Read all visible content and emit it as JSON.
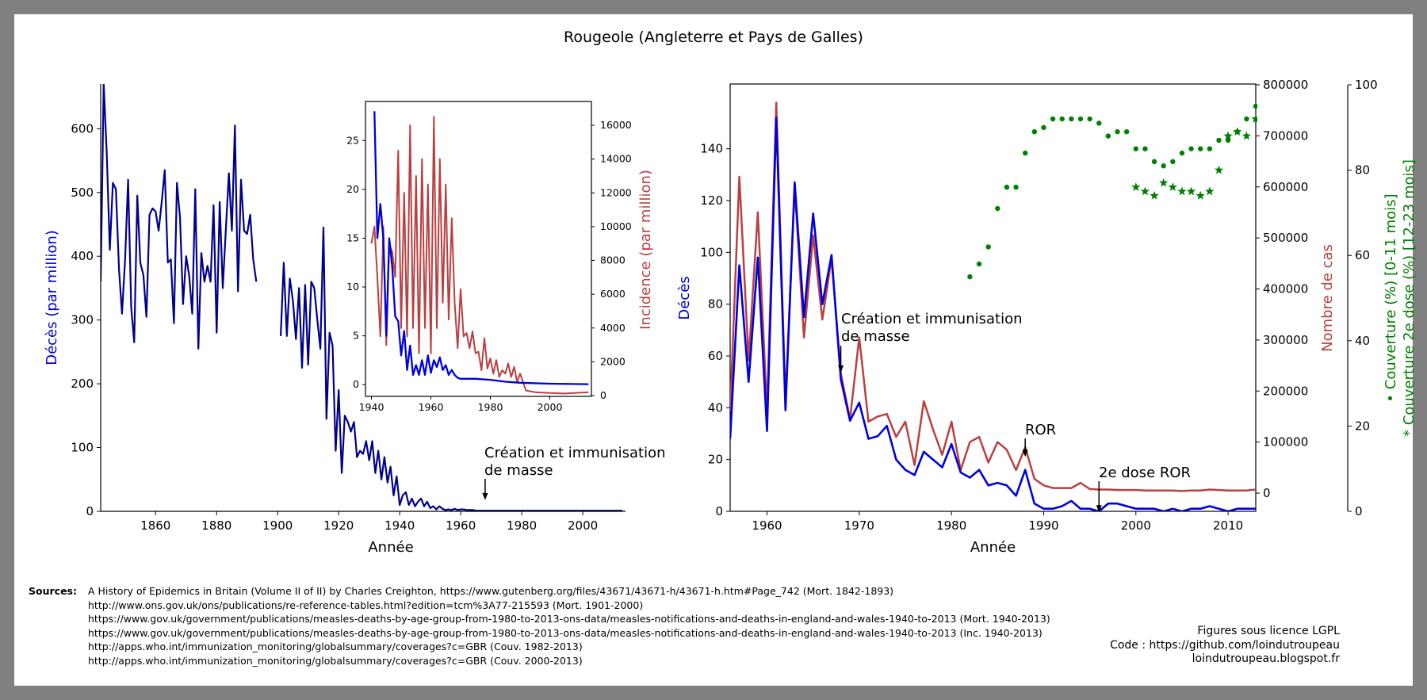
{
  "title": "Rougeole (Angleterre et Pays de Galles)",
  "colors": {
    "blue": "#0000dd",
    "navy": "#00008b",
    "red": "#b94040",
    "green": "#008000"
  },
  "chart_data": [
    {
      "type": "line",
      "id": "left-main",
      "xlabel": "Année",
      "ylabel": "Décès (par million)",
      "xlim": [
        1842,
        2014
      ],
      "ylim": [
        0,
        670
      ],
      "xticks": [
        "1860",
        "1880",
        "1900",
        "1920",
        "1940",
        "1960",
        "1980",
        "2000"
      ],
      "yticks": [
        "0",
        "100",
        "200",
        "300",
        "400",
        "500",
        "600"
      ],
      "annotation": {
        "text": [
          "Création et immunisation",
          "de masse"
        ],
        "x": 1968,
        "y": 15
      },
      "series": [
        {
          "segment": "1842-1893",
          "x": [
            1842,
            1843,
            1844,
            1845,
            1846,
            1847,
            1848,
            1849,
            1850,
            1851,
            1852,
            1853,
            1854,
            1855,
            1856,
            1857,
            1858,
            1859,
            1860,
            1861,
            1862,
            1863,
            1864,
            1865,
            1866,
            1867,
            1868,
            1869,
            1870,
            1871,
            1872,
            1873,
            1874,
            1875,
            1876,
            1877,
            1878,
            1879,
            1880,
            1881,
            1882,
            1883,
            1884,
            1885,
            1886,
            1887,
            1888,
            1889,
            1890,
            1891,
            1892,
            1893
          ],
          "y": [
            360,
            670,
            560,
            410,
            515,
            505,
            380,
            310,
            395,
            520,
            320,
            265,
            495,
            390,
            370,
            305,
            465,
            475,
            470,
            440,
            485,
            535,
            390,
            395,
            295,
            515,
            460,
            325,
            400,
            370,
            310,
            505,
            255,
            405,
            360,
            385,
            360,
            480,
            280,
            485,
            350,
            440,
            530,
            440,
            605,
            345,
            520,
            440,
            435,
            465,
            395,
            360
          ]
        },
        {
          "segment": "1901-1913",
          "x": [
            1901,
            1902,
            1903,
            1904,
            1905,
            1906,
            1907,
            1908,
            1909,
            1910,
            1911,
            1912,
            1913
          ],
          "y": [
            275,
            390,
            275,
            365,
            330,
            270,
            350,
            225,
            355,
            230,
            360,
            350,
            300
          ]
        },
        {
          "segment": "1913-2013",
          "x": [
            1913,
            1914,
            1915,
            1916,
            1917,
            1918,
            1919,
            1920,
            1921,
            1922,
            1923,
            1924,
            1925,
            1926,
            1927,
            1928,
            1929,
            1930,
            1931,
            1932,
            1933,
            1934,
            1935,
            1936,
            1937,
            1938,
            1939,
            1940,
            1941,
            1942,
            1943,
            1944,
            1945,
            1946,
            1947,
            1948,
            1949,
            1950,
            1951,
            1952,
            1953,
            1954,
            1955,
            1956,
            1957,
            1958,
            1959,
            1960,
            1961,
            1962,
            1963,
            1964,
            1965,
            1966,
            1967,
            1968,
            1969,
            1970,
            1980,
            1990,
            2000,
            2013
          ],
          "y": [
            300,
            255,
            445,
            145,
            280,
            260,
            95,
            190,
            60,
            150,
            140,
            125,
            140,
            85,
            95,
            90,
            110,
            80,
            110,
            60,
            95,
            50,
            85,
            45,
            70,
            25,
            55,
            10,
            25,
            30,
            10,
            20,
            8,
            15,
            20,
            8,
            15,
            5,
            8,
            3,
            8,
            4,
            2,
            3,
            2,
            4,
            2,
            3,
            3,
            2,
            2,
            2,
            1,
            1,
            1,
            1,
            1,
            1,
            1,
            1,
            1,
            1
          ]
        }
      ]
    },
    {
      "type": "line",
      "id": "left-inset",
      "xlim": [
        1938,
        2014
      ],
      "y_left_lim": [
        -1.2,
        29
      ],
      "y_right_lim": [
        0,
        17000
      ],
      "ylabel_right": "Incidence (par million)",
      "xticks": [
        "1940",
        "1960",
        "1980",
        "2000"
      ],
      "yticks_left": [
        "0",
        "5",
        "10",
        "15",
        "20",
        "25"
      ],
      "yticks_right": [
        "0",
        "2000",
        "4000",
        "6000",
        "8000",
        "10000",
        "12000",
        "14000",
        "16000"
      ],
      "series": [
        {
          "axis": "left",
          "x": [
            1941,
            1942,
            1943,
            1944,
            1945,
            1946,
            1947,
            1948,
            1949,
            1950,
            1951,
            1952,
            1953,
            1954,
            1955,
            1956,
            1957,
            1958,
            1959,
            1960,
            1961,
            1962,
            1963,
            1964,
            1965,
            1966,
            1967,
            1968,
            1969,
            1970,
            1975,
            1980,
            1985,
            1990,
            2000,
            2013
          ],
          "y": [
            28,
            15,
            18.5,
            15,
            5,
            15,
            12,
            7,
            6.5,
            3,
            5.5,
            1.5,
            4,
            1,
            2,
            1,
            2.5,
            1,
            3,
            1.2,
            2.5,
            1.8,
            2.8,
            1.5,
            2,
            1,
            1.5,
            1,
            0.7,
            0.6,
            0.6,
            0.5,
            0.3,
            0.2,
            0.1,
            0.05
          ]
        },
        {
          "axis": "right",
          "x": [
            1940,
            1941,
            1942,
            1943,
            1944,
            1945,
            1946,
            1947,
            1948,
            1949,
            1950,
            1951,
            1952,
            1953,
            1954,
            1955,
            1956,
            1957,
            1958,
            1959,
            1960,
            1961,
            1962,
            1963,
            1964,
            1965,
            1966,
            1967,
            1968,
            1969,
            1970,
            1971,
            1972,
            1973,
            1974,
            1975,
            1976,
            1977,
            1978,
            1979,
            1980,
            1981,
            1982,
            1983,
            1984,
            1985,
            1986,
            1987,
            1988,
            1989,
            1990,
            1992,
            1995,
            2000,
            2005,
            2013
          ],
          "y": [
            9000,
            10000,
            7000,
            3500,
            10000,
            3000,
            9000,
            8500,
            7000,
            14500,
            4000,
            12000,
            3500,
            16000,
            4000,
            13000,
            2500,
            14000,
            4000,
            12500,
            2500,
            16500,
            4000,
            14000,
            5500,
            12500,
            4500,
            10500,
            5500,
            2800,
            6300,
            3500,
            3700,
            2800,
            3800,
            2500,
            2600,
            1500,
            3400,
            1600,
            2200,
            1300,
            2100,
            1100,
            1500,
            1300,
            1900,
            1100,
            1700,
            800,
            1300,
            300,
            200,
            150,
            120,
            200
          ]
        }
      ]
    },
    {
      "type": "line",
      "id": "right",
      "xlabel": "Année",
      "ylabel_left": "Décès",
      "ylabel_right1": "Nombre de cas",
      "ylabel_right2_lines": [
        "• Couverture (%) [0-11 mois]",
        "* Couverture 2e dose (%) [12-23 mois]"
      ],
      "xlim": [
        1956,
        2013
      ],
      "y_left_lim": [
        0,
        165
      ],
      "y_right1_lim": [
        -35000,
        800000
      ],
      "y_right2_lim": [
        0,
        100
      ],
      "xticks": [
        "1960",
        "1970",
        "1980",
        "1990",
        "2000",
        "2010"
      ],
      "yticks_left": [
        "0",
        "20",
        "40",
        "60",
        "80",
        "100",
        "120",
        "140"
      ],
      "yticks_right1": [
        "0",
        "100000",
        "200000",
        "300000",
        "400000",
        "500000",
        "600000",
        "700000",
        "800000"
      ],
      "yticks_right2": [
        "0",
        "20",
        "40",
        "60",
        "80",
        "100"
      ],
      "annotations": [
        {
          "text": [
            "Création et immunisation",
            "de masse"
          ],
          "x": 1968,
          "y": 53
        },
        {
          "text": [
            "ROR"
          ],
          "x": 1988,
          "y": 21
        },
        {
          "text": [
            "2e dose ROR"
          ],
          "x": 1996,
          "y": 3
        }
      ],
      "series": [
        {
          "name_hidden": "deaths",
          "axis": "left",
          "x": [
            1956,
            1957,
            1958,
            1959,
            1960,
            1961,
            1962,
            1963,
            1964,
            1965,
            1966,
            1967,
            1968,
            1969,
            1970,
            1971,
            1972,
            1973,
            1974,
            1975,
            1976,
            1977,
            1978,
            1979,
            1980,
            1981,
            1982,
            1983,
            1984,
            1985,
            1986,
            1987,
            1988,
            1989,
            1990,
            1991,
            1992,
            1993,
            1994,
            1995,
            1996,
            1997,
            1998,
            1999,
            2000,
            2001,
            2002,
            2003,
            2004,
            2005,
            2006,
            2007,
            2008,
            2009,
            2010,
            2011,
            2012,
            2013
          ],
          "y": [
            28,
            95,
            50,
            98,
            31,
            152,
            39,
            127,
            75,
            115,
            80,
            99,
            51,
            35,
            42,
            28,
            29,
            33,
            20,
            16,
            14,
            23,
            20,
            17,
            26,
            15,
            13,
            16,
            10,
            11,
            10,
            6,
            16,
            3,
            1,
            1,
            2,
            4,
            1,
            1,
            0,
            3,
            3,
            2,
            1,
            1,
            1,
            0,
            1,
            0,
            1,
            1,
            2,
            1,
            0,
            1,
            1,
            1
          ]
        },
        {
          "name_hidden": "cases",
          "axis": "right1",
          "x": [
            1956,
            1957,
            1958,
            1959,
            1960,
            1961,
            1962,
            1963,
            1964,
            1965,
            1966,
            1967,
            1968,
            1969,
            1970,
            1971,
            1972,
            1973,
            1974,
            1975,
            1976,
            1977,
            1978,
            1979,
            1980,
            1981,
            1982,
            1983,
            1984,
            1985,
            1986,
            1987,
            1988,
            1989,
            1990,
            1991,
            1992,
            1993,
            1994,
            1995,
            1996,
            1997,
            1998,
            1999,
            2000,
            2001,
            2002,
            2003,
            2004,
            2005,
            2006,
            2007,
            2008,
            2009,
            2010,
            2011,
            2012,
            2013
          ],
          "y": [
            160000,
            620000,
            260000,
            550000,
            160000,
            765000,
            180000,
            600000,
            305000,
            505000,
            340000,
            460000,
            235000,
            145000,
            305000,
            140000,
            150000,
            155000,
            110000,
            140000,
            55000,
            180000,
            125000,
            75000,
            140000,
            45000,
            100000,
            110000,
            60000,
            100000,
            85000,
            45000,
            90000,
            28000,
            15000,
            10000,
            10000,
            10000,
            20000,
            8000,
            7000,
            7000,
            6000,
            6000,
            6000,
            5000,
            5000,
            5000,
            5000,
            4000,
            5000,
            5000,
            7000,
            6000,
            5000,
            5000,
            5000,
            7000
          ]
        },
        {
          "name_hidden": "coverage-0-11",
          "axis": "right2",
          "marker": "dot",
          "x": [
            1982,
            1983,
            1984,
            1985,
            1986,
            1987,
            1988,
            1989,
            1990,
            1991,
            1992,
            1993,
            1994,
            1995,
            1996,
            1997,
            1998,
            1999,
            2000,
            2001,
            2002,
            2003,
            2004,
            2005,
            2006,
            2007,
            2008,
            2009,
            2010,
            2011,
            2012,
            2013
          ],
          "y": [
            55,
            58,
            62,
            71,
            76,
            76,
            84,
            89,
            90,
            92,
            92,
            92,
            92,
            92,
            91,
            88,
            89,
            89,
            85,
            85,
            82,
            81,
            82,
            84,
            85,
            85,
            85,
            87,
            87,
            89,
            92,
            95
          ]
        },
        {
          "name_hidden": "coverage-2nd-dose",
          "axis": "right2",
          "marker": "star",
          "x": [
            2000,
            2001,
            2002,
            2003,
            2004,
            2005,
            2006,
            2007,
            2008,
            2009,
            2010,
            2011,
            2012,
            2013
          ],
          "y": [
            76,
            75,
            74,
            77,
            76,
            75,
            75,
            74,
            75,
            80,
            88,
            89,
            88,
            92
          ]
        }
      ]
    }
  ],
  "sources": {
    "label": "Sources:",
    "lines": [
      "A History of Epidemics in Britain (Volume II of II) by Charles Creighton, https://www.gutenberg.org/files/43671/43671-h/43671-h.htm#Page_742 (Mort. 1842-1893)",
      "http://www.ons.gov.uk/ons/publications/re-reference-tables.html?edition=tcm%3A77-215593 (Mort. 1901-2000)",
      "https://www.gov.uk/government/publications/measles-deaths-by-age-group-from-1980-to-2013-ons-data/measles-notifications-and-deaths-in-england-and-wales-1940-to-2013 (Mort. 1940-2013)",
      "https://www.gov.uk/government/publications/measles-deaths-by-age-group-from-1980-to-2013-ons-data/measles-notifications-and-deaths-in-england-and-wales-1940-to-2013 (Inc. 1940-2013)",
      "http://apps.who.int/immunization_monitoring/globalsummary/coverages?c=GBR (Couv. 1982-2013)",
      "http://apps.who.int/immunization_monitoring/globalsummary/coverages?c=GBR (Couv. 2000-2013)"
    ]
  },
  "license": {
    "line1": "Figures sous licence LGPL",
    "line2": "Code : https://github.com/loindutroupeau",
    "line3": "loindutroupeau.blogspot.fr"
  }
}
